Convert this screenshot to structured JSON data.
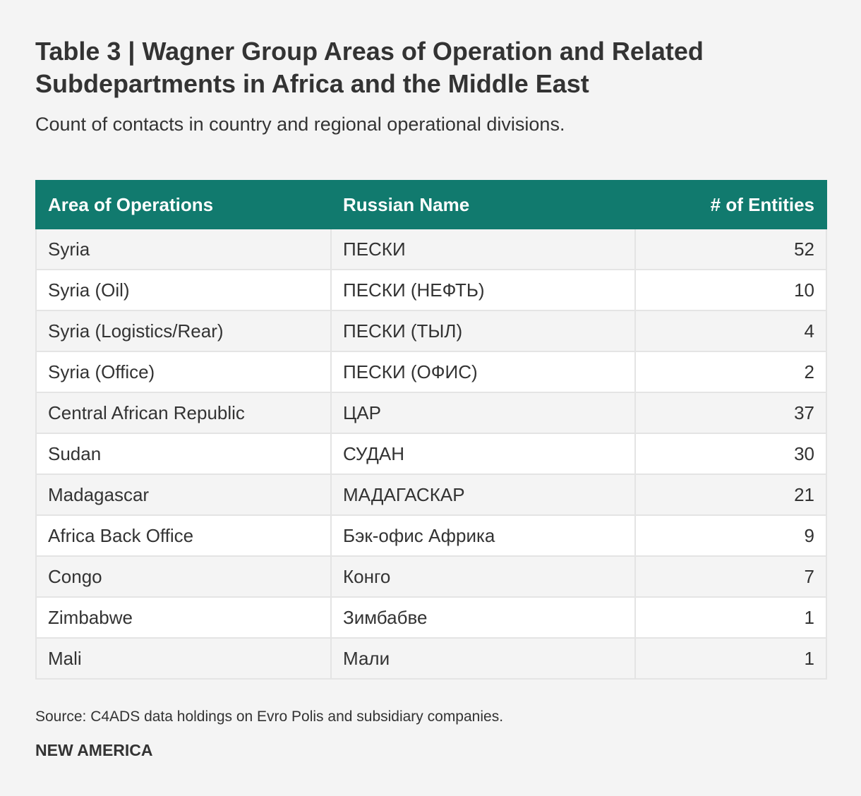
{
  "title": "Table 3 | Wagner Group Areas of Operation and Related Subdepartments in Africa and the Middle East",
  "subtitle": "Count of contacts in country and regional operational divisions.",
  "chart_data": {
    "type": "table",
    "columns": [
      "Area of Operations",
      "Russian Name",
      "# of Entities"
    ],
    "rows": [
      [
        "Syria",
        "ПЕСКИ",
        "52"
      ],
      [
        "Syria (Oil)",
        "ПЕСКИ (НЕФТЬ)",
        "10"
      ],
      [
        "Syria (Logistics/Rear)",
        "ПЕСКИ (ТЫЛ)",
        "4"
      ],
      [
        "Syria (Office)",
        "ПЕСКИ (ОФИС)",
        "2"
      ],
      [
        "Central African Republic",
        "ЦАР",
        "37"
      ],
      [
        "Sudan",
        "СУДАН",
        "30"
      ],
      [
        "Madagascar",
        "МАДАГАСКАР",
        "21"
      ],
      [
        "Africa Back Office",
        "Бэк-офис Африка",
        "9"
      ],
      [
        "Congo",
        "Конго",
        "7"
      ],
      [
        "Zimbabwe",
        "Зимбабве",
        "1"
      ],
      [
        "Mali",
        "Мали",
        "1"
      ]
    ]
  },
  "source": "Source: C4ADS data holdings on Evro Polis and subsidiary companies.",
  "brand": "NEW AMERICA",
  "colors": {
    "header_bg": "#117a6e",
    "header_text": "#ffffff",
    "page_bg": "#f4f4f4",
    "row_alt_bg": "#ffffff",
    "text": "#333333",
    "grid": "#e4e4e4"
  }
}
